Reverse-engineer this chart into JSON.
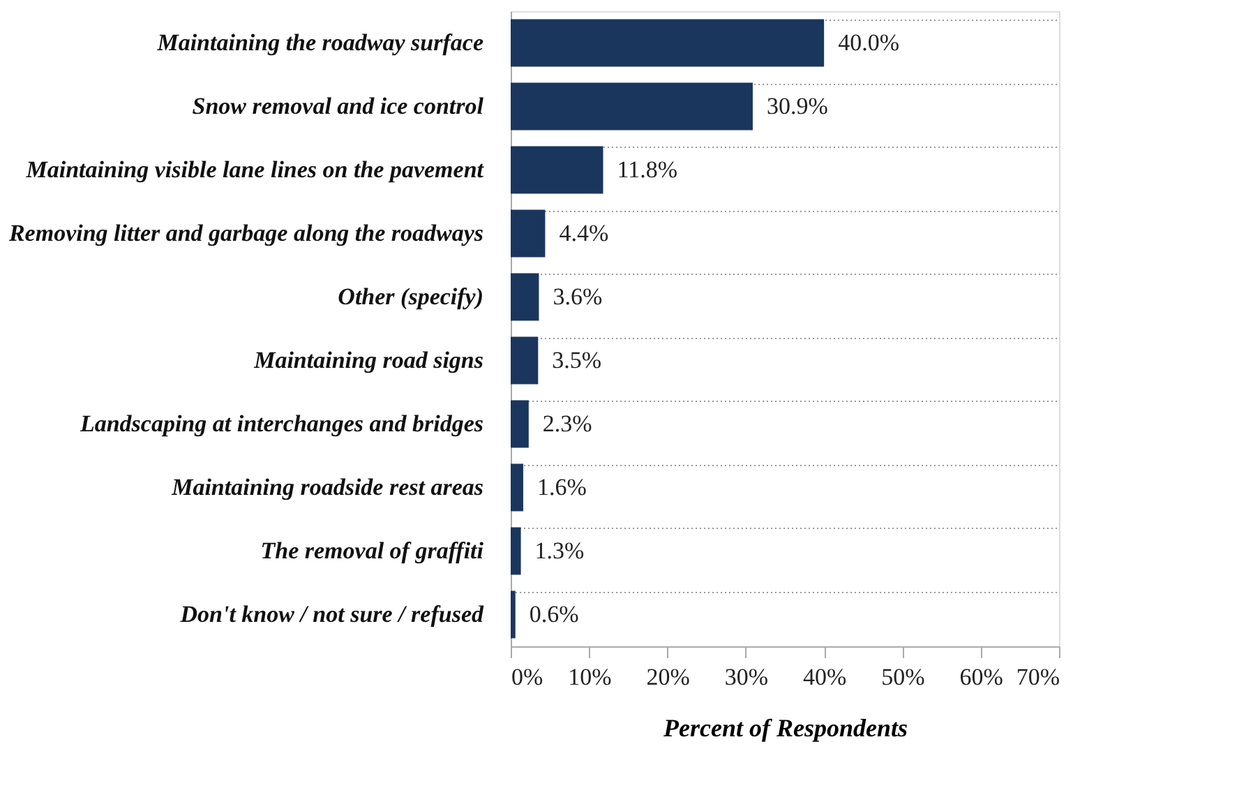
{
  "chart_data": {
    "type": "bar",
    "orientation": "horizontal",
    "xlabel": "Percent of Respondents",
    "categories": [
      "Maintaining  the roadway  surface",
      "Snow removal and ice control",
      "Maintaining  visible lane lines on the pavement",
      "Removing litter and garbage along the roadways",
      "Other (specify)",
      "Maintaining  road signs",
      "Landscaping at interchanges and bridges",
      "Maintaining  roadside  rest areas",
      "The removal  of graffiti",
      "Don't know / not sure / refused"
    ],
    "values": [
      40.0,
      30.9,
      11.8,
      4.4,
      3.6,
      3.5,
      2.3,
      1.6,
      1.3,
      0.6
    ],
    "value_labels": [
      "40.0%",
      "30.9%",
      "11.8%",
      "4.4%",
      "3.6%",
      "3.5%",
      "2.3%",
      "1.6%",
      "1.3%",
      "0.6%"
    ],
    "color": "#1b365d",
    "xlim": [
      0,
      70
    ],
    "xticks": [
      {
        "value": 0,
        "label": "0%"
      },
      {
        "value": 10,
        "label": "10%"
      },
      {
        "value": 20,
        "label": "20%"
      },
      {
        "value": 30,
        "label": "30%"
      },
      {
        "value": 40,
        "label": "40%"
      },
      {
        "value": 50,
        "label": "50%"
      },
      {
        "value": 60,
        "label": "60%"
      },
      {
        "value": 70,
        "label": "70%"
      }
    ],
    "grid": "y"
  }
}
